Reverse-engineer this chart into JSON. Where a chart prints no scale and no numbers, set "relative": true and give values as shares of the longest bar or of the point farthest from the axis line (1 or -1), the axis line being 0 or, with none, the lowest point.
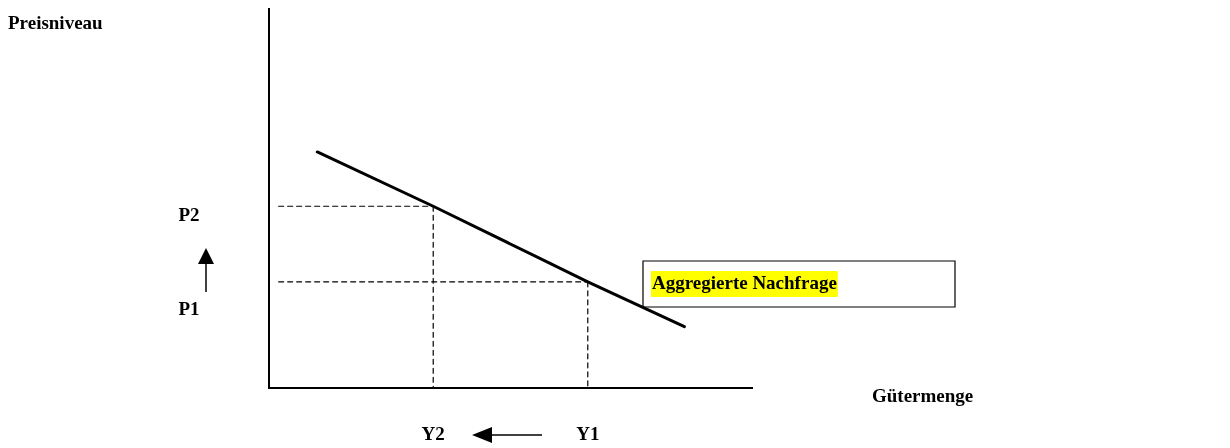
{
  "chart_data": {
    "type": "line",
    "relative": true,
    "categories": [
      null,
      null,
      null,
      null,
      null,
      null,
      null,
      null,
      "Y2",
      null,
      null,
      null,
      null,
      null,
      null,
      null,
      "Y1",
      null,
      null,
      null,
      null,
      null,
      null,
      null,
      null
    ],
    "grid": false,
    "legend": false,
    "marker": "none",
    "annotations": [
      "Preisniveau",
      "P2",
      "P1",
      "Aggregierte Nachfrage",
      "Gütermenge"
    ],
    "series": [
      {
        "color": "#000000",
        "values": [
          null,
          null,
          1,
          null,
          null,
          null,
          null,
          null,
          0.77,
          null,
          null,
          null,
          null,
          null,
          null,
          null,
          0.45,
          null,
          null,
          null,
          null,
          0.26,
          null,
          null,
          null
        ]
      },
      {
        "color": "#000000",
        "line_style": "dashed",
        "values": [
          0.77,
          0.77,
          0.77,
          0.77,
          0.77,
          0.77,
          0.77,
          0.77,
          0.77,
          null,
          null,
          null,
          null,
          null,
          null,
          null,
          null,
          null,
          null,
          null,
          null,
          null,
          null,
          null,
          null
        ]
      },
      {
        "color": "#000000",
        "line_style": "dashed",
        "x": [
          "Y2",
          "Y2"
        ],
        "values": [
          0.77,
          0
        ]
      },
      {
        "color": "#000000",
        "line_style": "dashed",
        "values": [
          0.45,
          0.45,
          0.45,
          0.45,
          0.45,
          0.45,
          0.45,
          0.45,
          0.45,
          0.45,
          0.45,
          0.45,
          0.45,
          0.45,
          0.45,
          0.45,
          0.45,
          null,
          null,
          null,
          null,
          null,
          null,
          null,
          null
        ]
      },
      {
        "color": "#000000",
        "line_style": "dashed",
        "x": [
          "Y1",
          "Y1"
        ],
        "values": [
          0.45,
          0
        ]
      }
    ]
  }
}
